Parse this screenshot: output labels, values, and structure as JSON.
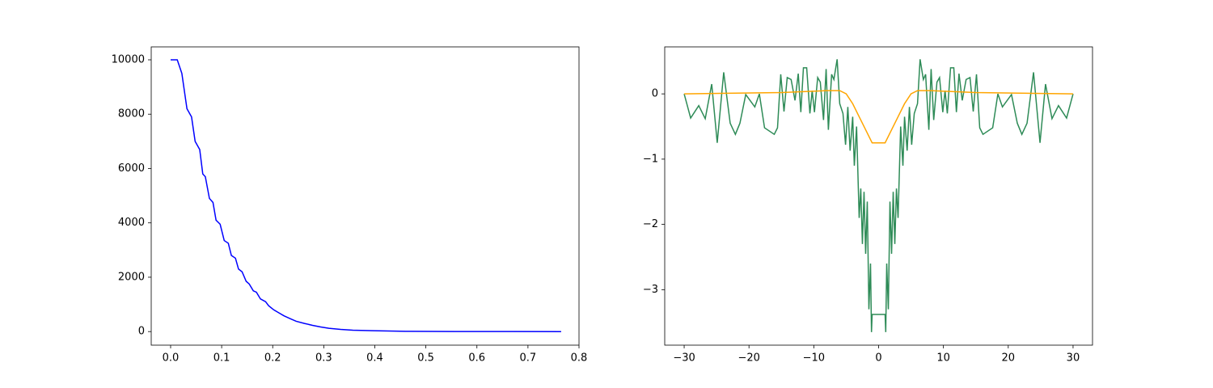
{
  "chart_data": [
    {
      "type": "line",
      "xlim": [
        -0.038,
        0.8
      ],
      "ylim": [
        -500,
        10476
      ],
      "xticks": [
        {
          "value": 0,
          "label": "0.0"
        },
        {
          "value": 0.1,
          "label": "0.1"
        },
        {
          "value": 0.2,
          "label": "0.2"
        },
        {
          "value": 0.3,
          "label": "0.3"
        },
        {
          "value": 0.4,
          "label": "0.4"
        },
        {
          "value": 0.5,
          "label": "0.5"
        },
        {
          "value": 0.6,
          "label": "0.6"
        },
        {
          "value": 0.7,
          "label": "0.7"
        },
        {
          "value": 0.8,
          "label": "0.8"
        }
      ],
      "yticks": [
        0,
        2000,
        4000,
        6000,
        8000,
        10000
      ],
      "series": [
        {
          "color": "#0000ff",
          "x": [
            0,
            0.013,
            0.022,
            0.032,
            0.041,
            0.048,
            0.057,
            0.063,
            0.068,
            0.076,
            0.083,
            0.089,
            0.097,
            0.105,
            0.113,
            0.119,
            0.127,
            0.133,
            0.14,
            0.148,
            0.154,
            0.162,
            0.168,
            0.176,
            0.186,
            0.192,
            0.202,
            0.211,
            0.222,
            0.235,
            0.246,
            0.262,
            0.278,
            0.294,
            0.31,
            0.333,
            0.357,
            0.397,
            0.46,
            0.556,
            0.667,
            0.765
          ],
          "values": [
            10000,
            10000,
            9500,
            8200,
            7900,
            7000,
            6700,
            5800,
            5700,
            4900,
            4750,
            4100,
            3950,
            3350,
            3250,
            2800,
            2700,
            2300,
            2200,
            1850,
            1750,
            1500,
            1450,
            1200,
            1100,
            950,
            800,
            700,
            580,
            470,
            380,
            300,
            230,
            170,
            120,
            80,
            50,
            30,
            10,
            3,
            1,
            0
          ]
        }
      ]
    },
    {
      "type": "line",
      "xlim": [
        -33,
        33
      ],
      "ylim": [
        -3.85,
        0.72
      ],
      "xticks": [
        {
          "value": -30,
          "label": "−30"
        },
        {
          "value": -20,
          "label": "−20"
        },
        {
          "value": -10,
          "label": "−10"
        },
        0,
        10,
        20,
        30
      ],
      "yticks": [
        {
          "value": -3,
          "label": "−3"
        },
        {
          "value": -2,
          "label": "−2"
        },
        {
          "value": -1,
          "label": "−1"
        },
        0
      ],
      "series": [
        {
          "color": "#2e8b57",
          "x": [
            -30,
            -29,
            -27.75,
            -26.75,
            -25.75,
            -24.9,
            -23.9,
            -22.9,
            -22.1,
            -21.4,
            -20.5,
            -19.1,
            -18.4,
            -17.6,
            -16.1,
            -15.6,
            -15.1,
            -14.6,
            -14.1,
            -13.5,
            -12.9,
            -12.4,
            -12,
            -11.6,
            -11.1,
            -10.6,
            -10.25,
            -9.9,
            -9.4,
            -9,
            -8.5,
            -8.1,
            -7.75,
            -7.25,
            -6.9,
            -6.4,
            -6,
            -5.5,
            -5.1,
            -4.75,
            -4.4,
            -4,
            -3.75,
            -3.4,
            -3,
            -2.75,
            -2.5,
            -2.25,
            -2,
            -1.75,
            -1.5,
            -1.25,
            -1.1,
            -1,
            1,
            1.1,
            1.25,
            1.5,
            1.75,
            2,
            2.25,
            2.5,
            2.75,
            3,
            3.4,
            3.75,
            4,
            4.4,
            4.75,
            5.1,
            5.5,
            6,
            6.4,
            6.9,
            7.25,
            7.75,
            8.1,
            8.5,
            9,
            9.4,
            9.9,
            10.25,
            10.6,
            11.1,
            11.6,
            12,
            12.4,
            12.9,
            13.5,
            14.1,
            14.6,
            15.1,
            15.6,
            16.1,
            17.6,
            18.4,
            19.1,
            20.5,
            21.4,
            22.1,
            22.9,
            23.9,
            24.9,
            25.75,
            26.75,
            27.75,
            29,
            30
          ],
          "values": [
            0,
            -0.37,
            -0.18,
            -0.38,
            0.15,
            -0.75,
            0.33,
            -0.45,
            -0.62,
            -0.45,
            -0.01,
            -0.2,
            0,
            -0.52,
            -0.62,
            -0.52,
            0.3,
            -0.27,
            0.25,
            0.22,
            -0.1,
            0.31,
            -0.28,
            0.4,
            0.4,
            -0.3,
            0.05,
            -0.28,
            0.25,
            0.18,
            -0.4,
            0.38,
            -0.55,
            0.3,
            0.22,
            0.53,
            -0.15,
            -0.3,
            -0.78,
            -0.2,
            -0.87,
            -0.35,
            -1.1,
            -0.5,
            -1.9,
            -1.45,
            -2.3,
            -1.5,
            -2.45,
            -1.65,
            -3.3,
            -2.6,
            -3.65,
            -3.38,
            -3.38,
            -3.65,
            -2.6,
            -3.3,
            -1.65,
            -2.45,
            -1.5,
            -2.3,
            -1.45,
            -1.9,
            -0.5,
            -1.1,
            -0.35,
            -0.87,
            -0.2,
            -0.78,
            -0.3,
            -0.15,
            0.53,
            0.22,
            0.3,
            -0.55,
            0.38,
            -0.4,
            0.18,
            0.25,
            -0.28,
            0.05,
            -0.3,
            0.4,
            0.4,
            -0.28,
            0.31,
            -0.1,
            0.22,
            0.25,
            -0.27,
            0.3,
            -0.52,
            -0.62,
            -0.52,
            0,
            -0.2,
            -0.01,
            -0.45,
            -0.62,
            -0.45,
            0.33,
            -0.75,
            0.15,
            -0.38,
            -0.18,
            -0.37,
            0
          ]
        },
        {
          "color": "#ffa500",
          "x": [
            -30,
            -15,
            -8,
            -6,
            -5,
            -4,
            -3,
            -2,
            -1,
            1,
            2,
            3,
            4,
            5,
            6,
            8,
            15,
            30
          ],
          "values": [
            0,
            0.02,
            0.05,
            0.05,
            0,
            -0.15,
            -0.35,
            -0.55,
            -0.75,
            -0.75,
            -0.55,
            -0.35,
            -0.15,
            0,
            0.05,
            0.05,
            0.02,
            0
          ]
        }
      ]
    }
  ]
}
